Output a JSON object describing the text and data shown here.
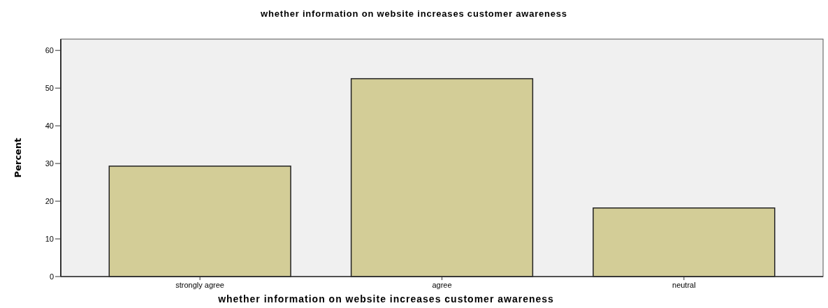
{
  "chart_data": {
    "type": "bar",
    "title": "whether information on website increases customer awareness",
    "xlabel": "whether information on website increases customer awareness",
    "ylabel": "Percent",
    "categories": [
      "strongly agree",
      "agree",
      "neutral"
    ],
    "values": [
      29.3,
      52.5,
      18.2
    ],
    "color": "#d3cd97",
    "ylim": [
      0,
      63
    ],
    "yticks": [
      0,
      10,
      20,
      30,
      40,
      50,
      60
    ],
    "grid": false
  }
}
